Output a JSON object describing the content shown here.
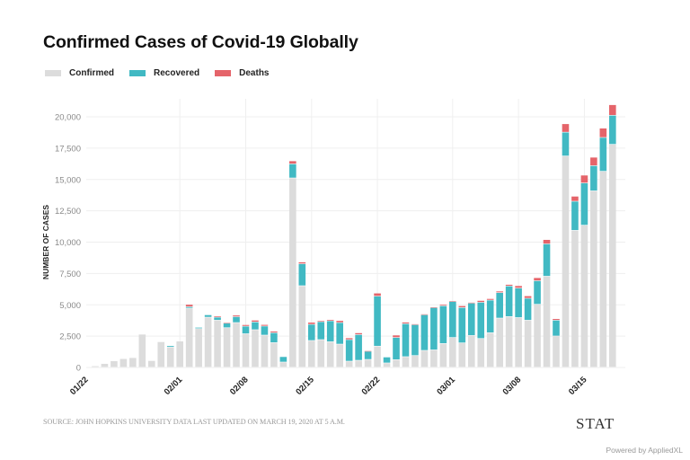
{
  "chart_data": {
    "type": "bar",
    "stacked": true,
    "title": "Confirmed Cases of Covid-19 Globally",
    "xlabel": "",
    "ylabel": "NUMBER OF CASES",
    "ylim": [
      0,
      20000
    ],
    "yticks": [
      0,
      2500,
      5000,
      7500,
      10000,
      12500,
      15000,
      17500,
      20000
    ],
    "ytick_labels": [
      "0",
      "2,500",
      "5,000",
      "7,500",
      "10,000",
      "12,500",
      "15,000",
      "17,500",
      "20,000"
    ],
    "xtick_labels": [
      "01/22",
      "02/01",
      "02/08",
      "02/15",
      "02/22",
      "03/01",
      "03/08",
      "03/15"
    ],
    "grid": true,
    "legend_position": "top-left",
    "categories": [
      "01/22",
      "01/23",
      "01/24",
      "01/25",
      "01/26",
      "01/27",
      "01/28",
      "01/29",
      "01/30",
      "01/31",
      "02/01",
      "02/02",
      "02/03",
      "02/04",
      "02/05",
      "02/06",
      "02/07",
      "02/08",
      "02/09",
      "02/10",
      "02/11",
      "02/12",
      "02/13",
      "02/14",
      "02/15",
      "02/16",
      "02/17",
      "02/18",
      "02/19",
      "02/20",
      "02/21",
      "02/22",
      "02/23",
      "02/24",
      "02/25",
      "02/26",
      "02/27",
      "02/28",
      "02/29",
      "03/01",
      "03/02",
      "03/03",
      "03/04",
      "03/05",
      "03/06",
      "03/07",
      "03/08",
      "03/09",
      "03/10",
      "03/11",
      "03/12",
      "03/13",
      "03/14",
      "03/15",
      "03/16",
      "03/17",
      "03/18"
    ],
    "series": [
      {
        "name": "Confirmed",
        "color": "#dcdcdc",
        "values": [
          0,
          100,
          290,
          500,
          680,
          760,
          2630,
          525,
          2030,
          1600,
          2080,
          4710,
          3080,
          3990,
          3750,
          3150,
          3560,
          2670,
          2990,
          2560,
          1960,
          410,
          15100,
          6500,
          2130,
          2200,
          2030,
          1840,
          480,
          550,
          620,
          1680,
          340,
          600,
          840,
          930,
          1340,
          1380,
          1890,
          2370,
          1940,
          2530,
          2290,
          2750,
          3920,
          4040,
          3960,
          3750,
          5020,
          7260,
          2490,
          16850,
          10920,
          11330,
          14070,
          15630,
          17780
        ]
      },
      {
        "name": "Recovered",
        "color": "#41b9c3",
        "values": [
          0,
          0,
          0,
          0,
          0,
          0,
          0,
          0,
          0,
          110,
          0,
          115,
          100,
          190,
          240,
          360,
          470,
          600,
          620,
          720,
          790,
          430,
          1120,
          1750,
          1290,
          1430,
          1670,
          1720,
          1720,
          2050,
          650,
          3990,
          470,
          1770,
          2630,
          2460,
          2840,
          3370,
          3010,
          2870,
          2820,
          2580,
          2890,
          2600,
          2030,
          2440,
          2350,
          1750,
          1880,
          2580,
          1260,
          1900,
          2320,
          3370,
          2010,
          2700,
          2320
        ]
      },
      {
        "name": "Deaths",
        "color": "#e5646a",
        "values": [
          0,
          0,
          0,
          0,
          0,
          0,
          0,
          0,
          0,
          0,
          0,
          180,
          0,
          0,
          100,
          60,
          120,
          120,
          140,
          120,
          120,
          0,
          240,
          140,
          160,
          90,
          100,
          160,
          140,
          140,
          40,
          240,
          0,
          190,
          120,
          60,
          60,
          50,
          100,
          60,
          140,
          60,
          140,
          120,
          120,
          120,
          190,
          190,
          240,
          340,
          120,
          670,
          400,
          620,
          670,
          740,
          840
        ]
      }
    ]
  },
  "header": {
    "title": "Confirmed Cases of Covid-19 Globally"
  },
  "legend": {
    "items": [
      {
        "label": "Confirmed",
        "color": "#dcdcdc"
      },
      {
        "label": "Recovered",
        "color": "#41b9c3"
      },
      {
        "label": "Deaths",
        "color": "#e5646a"
      }
    ]
  },
  "footer": {
    "source": "SOURCE: JOHN HOPKINS UNIVERSITY DATA LAST UPDATED ON MARCH 19, 2020 AT 5 A.M.",
    "brand": "STAT",
    "powered_by": "Powered by AppliedXL"
  }
}
